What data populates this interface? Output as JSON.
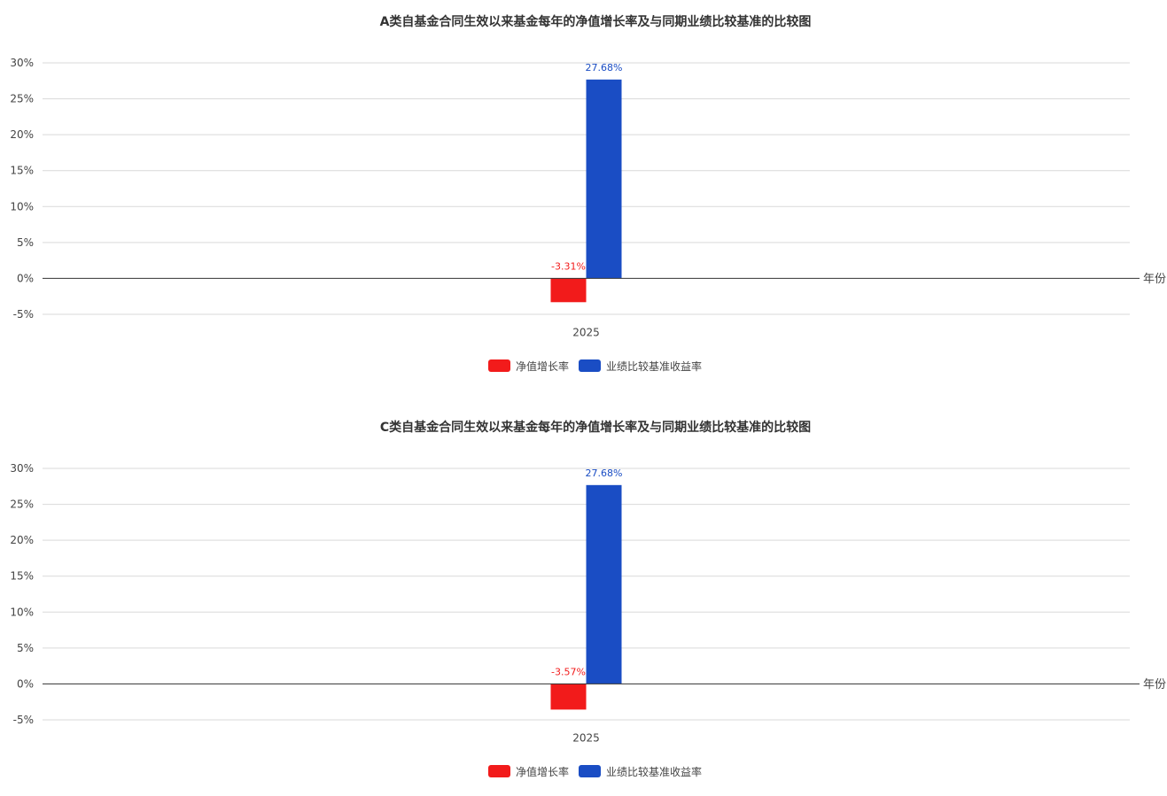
{
  "charts": [
    {
      "title": "A类自基金合同生效以来基金每年的净值增长率及与同期业绩比较基准的比较图",
      "x_axis_name": "年份",
      "legend": [
        "净值增长率",
        "业绩比较基准收益率"
      ]
    },
    {
      "title": "C类自基金合同生效以来基金每年的净值增长率及与同期业绩比较基准的比较图",
      "x_axis_name": "年份",
      "legend": [
        "净值增长率",
        "业绩比较基准收益率"
      ]
    }
  ],
  "colors": {
    "nav": "#f21b1b",
    "benchmark": "#1a4dc4",
    "grid": "#d9d9d9",
    "zero_axis": "#333333"
  },
  "chart_data": [
    {
      "type": "bar",
      "title": "A类自基金合同生效以来基金每年的净值增长率及与同期业绩比较基准的比较图",
      "categories": [
        "2025"
      ],
      "series": [
        {
          "name": "净值增长率",
          "values": [
            -3.31
          ],
          "labels": [
            "-3.31%"
          ]
        },
        {
          "name": "业绩比较基准收益率",
          "values": [
            27.68
          ],
          "labels": [
            "27.68%"
          ]
        }
      ],
      "xlabel": "年份",
      "ylabel": "",
      "ylim": [
        -5,
        30
      ],
      "yticks": [
        -5,
        0,
        5,
        10,
        15,
        20,
        25,
        30
      ],
      "ytick_labels": [
        "-5%",
        "0%",
        "5%",
        "10%",
        "15%",
        "20%",
        "25%",
        "30%"
      ],
      "grid": true,
      "legend_position": "bottom-center"
    },
    {
      "type": "bar",
      "title": "C类自基金合同生效以来基金每年的净值增长率及与同期业绩比较基准的比较图",
      "categories": [
        "2025"
      ],
      "series": [
        {
          "name": "净值增长率",
          "values": [
            -3.57
          ],
          "labels": [
            "-3.57%"
          ]
        },
        {
          "name": "业绩比较基准收益率",
          "values": [
            27.68
          ],
          "labels": [
            "27.68%"
          ]
        }
      ],
      "xlabel": "年份",
      "ylabel": "",
      "ylim": [
        -5,
        30
      ],
      "yticks": [
        -5,
        0,
        5,
        10,
        15,
        20,
        25,
        30
      ],
      "ytick_labels": [
        "-5%",
        "0%",
        "5%",
        "10%",
        "15%",
        "20%",
        "25%",
        "30%"
      ],
      "grid": true,
      "legend_position": "bottom-center"
    }
  ]
}
